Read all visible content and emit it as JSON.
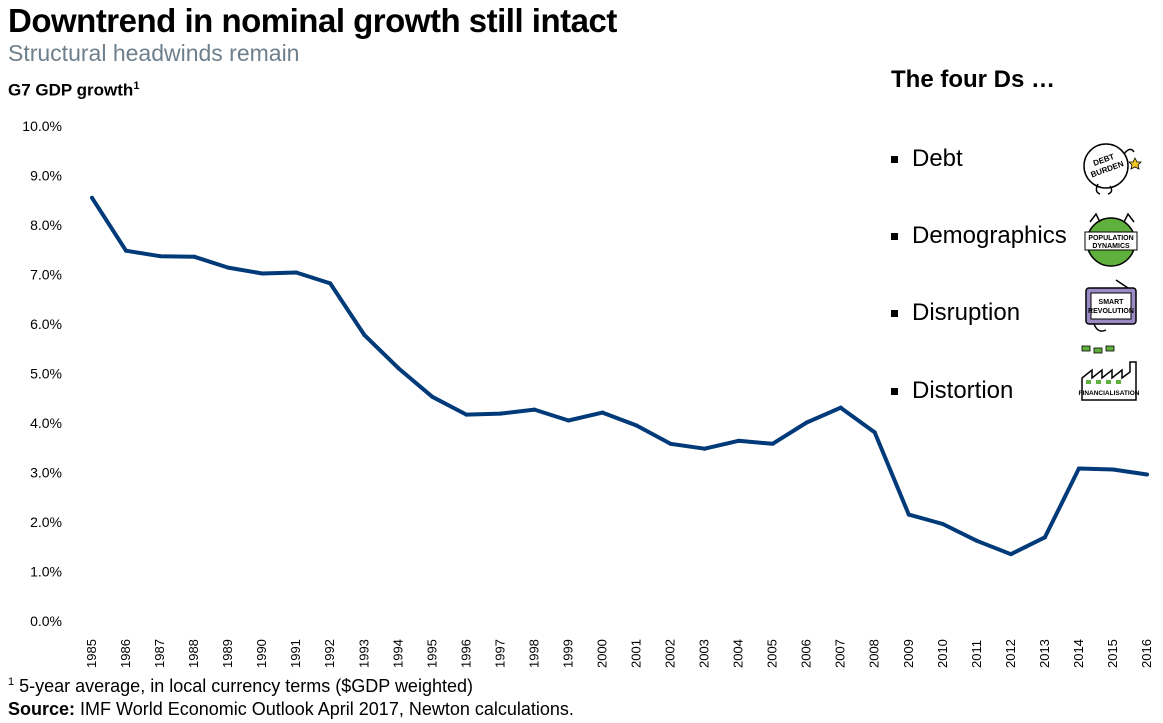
{
  "header": {
    "title": "Downtrend in nominal growth still intact",
    "subtitle": "Structural headwinds remain",
    "y_label": "G7 GDP growth",
    "y_label_sup": "1"
  },
  "side_panel": {
    "heading": "The four Ds …",
    "items": [
      {
        "label": "Debt",
        "icon": "debt-burden-icon",
        "icon_text": [
          "DEBT",
          "BURDEN"
        ]
      },
      {
        "label": "Demographics",
        "icon": "population-dynamics-icon",
        "icon_text": [
          "POPULATION",
          "DYNAMICS"
        ]
      },
      {
        "label": "Disruption",
        "icon": "smart-revolution-icon",
        "icon_text": [
          "SMART",
          "REVOLUTION"
        ]
      },
      {
        "label": "Distortion",
        "icon": "financialisation-icon",
        "icon_text": [
          "FINANCIALISATION"
        ]
      }
    ]
  },
  "footer": {
    "footnote_sup": "1",
    "footnote": " 5-year average, in local currency terms ($GDP weighted)",
    "source_label": "Source:",
    "source_text": " IMF World Economic Outlook April 2017, Newton calculations."
  },
  "chart_data": {
    "type": "line",
    "title": "",
    "xlabel": "",
    "ylabel": "G7 GDP growth",
    "ylim": [
      0,
      10
    ],
    "yticks": [
      "0.0%",
      "1.0%",
      "2.0%",
      "3.0%",
      "4.0%",
      "5.0%",
      "6.0%",
      "7.0%",
      "8.0%",
      "9.0%",
      "10.0%"
    ],
    "line_color": "#003a78",
    "grid": false,
    "categories": [
      "1985",
      "1986",
      "1987",
      "1988",
      "1989",
      "1990",
      "1991",
      "1992",
      "1993",
      "1994",
      "1995",
      "1996",
      "1997",
      "1998",
      "1999",
      "2000",
      "2001",
      "2002",
      "2003",
      "2004",
      "2005",
      "2006",
      "2007",
      "2008",
      "2009",
      "2010",
      "2011",
      "2012",
      "2013",
      "2014",
      "2015",
      "2016"
    ],
    "series": [
      {
        "values": [
          8.55,
          7.48,
          7.37,
          7.36,
          7.14,
          7.02,
          7.04,
          6.82,
          5.78,
          5.11,
          4.53,
          4.17,
          4.19,
          4.27,
          4.05,
          4.21,
          3.95,
          3.58,
          3.48,
          3.64,
          3.58,
          4.01,
          4.31,
          3.81,
          2.15,
          1.96,
          1.62,
          1.35,
          1.69,
          3.08,
          3.06,
          2.96
        ]
      }
    ]
  }
}
